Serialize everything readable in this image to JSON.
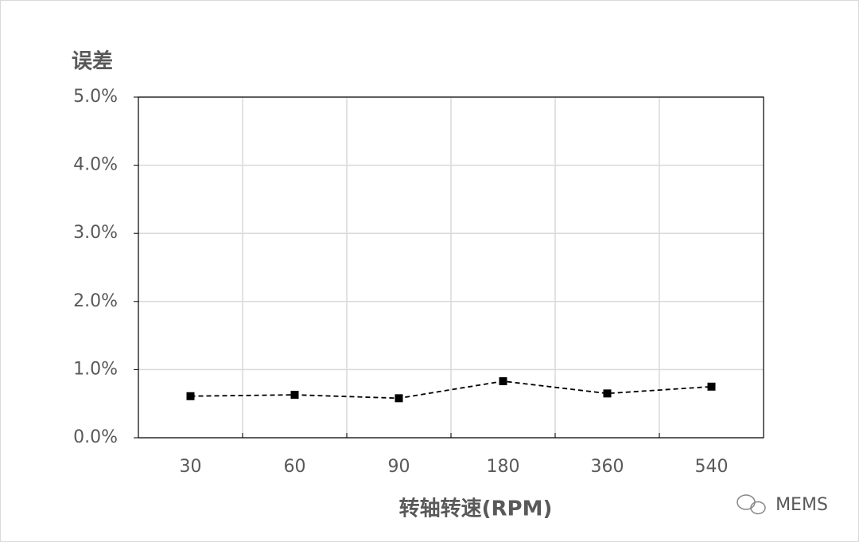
{
  "chart_data": {
    "type": "line",
    "y_label": "误差",
    "x_label": "转轴转速(RPM)",
    "watermark": "MEMS",
    "categories": [
      "30",
      "60",
      "90",
      "180",
      "360",
      "540"
    ],
    "series": [
      {
        "color": "#000000",
        "values": [
          0.61,
          0.63,
          0.58,
          0.83,
          0.65,
          0.75
        ]
      }
    ],
    "ylim": [
      0,
      5
    ],
    "yticks": [
      {
        "value": 0,
        "label": "0.0%"
      },
      {
        "value": 1,
        "label": "1.0%"
      },
      {
        "value": 2,
        "label": "2.0%"
      },
      {
        "value": 3,
        "label": "3.0%"
      },
      {
        "value": 4,
        "label": "4.0%"
      },
      {
        "value": 5,
        "label": "5.0%"
      }
    ],
    "grid": true,
    "line_style": "dashed"
  }
}
